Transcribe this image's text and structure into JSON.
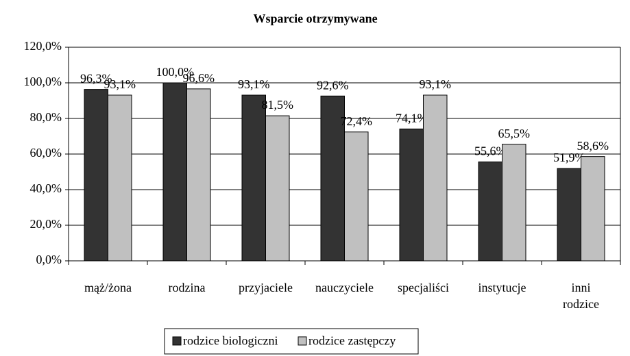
{
  "chart_data": {
    "type": "bar",
    "title": "Wsparcie otrzymywane",
    "categories": [
      "mąż/żona",
      "rodzina",
      "przyjaciele",
      "nauczyciele",
      "specjaliści",
      "instytucje",
      "inni rodzice"
    ],
    "series": [
      {
        "name": "rodzice biologiczni",
        "color": "#333333",
        "values": [
          96.3,
          100,
          93.1,
          92.6,
          74.1,
          55.6,
          51.9
        ],
        "value_labels": [
          "96,3%",
          "100,0%",
          "93,1%",
          "92,6%",
          "74,1%",
          "55,6%",
          "51,9%"
        ]
      },
      {
        "name": "rodzice zastępczy",
        "color": "#c0c0c0",
        "values": [
          93.1,
          96.6,
          81.5,
          72.4,
          93.1,
          65.5,
          58.6
        ],
        "value_labels": [
          "93,1%",
          "96,6%",
          "81,5%",
          "72,4%",
          "93,1%",
          "65,5%",
          "58,6%"
        ]
      }
    ],
    "ylim": [
      0,
      120
    ],
    "yticks": [
      {
        "value": 0,
        "label": "0,0%"
      },
      {
        "value": 20,
        "label": "20,0%"
      },
      {
        "value": 40,
        "label": "40,0%"
      },
      {
        "value": 60,
        "label": "60,0%"
      },
      {
        "value": 80,
        "label": "80,0%"
      },
      {
        "value": 100,
        "label": "100,0%"
      },
      {
        "value": 120,
        "label": "120,0%"
      }
    ],
    "grid": true,
    "legend": "bottom"
  }
}
